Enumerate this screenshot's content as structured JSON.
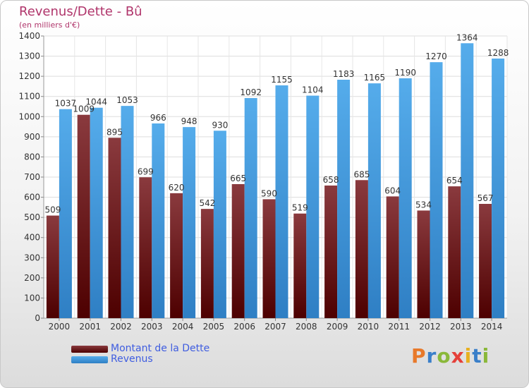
{
  "chart_data": {
    "type": "bar",
    "title": "Revenus/Dette - Bû",
    "subtitle": "(en milliers d'€)",
    "categories": [
      "2000",
      "2001",
      "2002",
      "2003",
      "2004",
      "2005",
      "2006",
      "2007",
      "2008",
      "2009",
      "2010",
      "2011",
      "2012",
      "2013",
      "2014"
    ],
    "series": [
      {
        "name": "Montant de la Dette",
        "values": [
          509,
          1009,
          895,
          699,
          620,
          542,
          665,
          590,
          519,
          658,
          685,
          604,
          534,
          654,
          567
        ],
        "color": "#6e1f27"
      },
      {
        "name": "Revenus",
        "values": [
          1037,
          1044,
          1053,
          966,
          948,
          930,
          1092,
          1155,
          1104,
          1183,
          1165,
          1190,
          1270,
          1364,
          1288
        ],
        "color": "#3f9ddc"
      }
    ],
    "ylim": [
      0,
      1400
    ],
    "yticks": [
      0,
      100,
      200,
      300,
      400,
      500,
      600,
      700,
      800,
      900,
      1000,
      1100,
      1200,
      1300,
      1400
    ],
    "grid": true,
    "legend_position": "bottom-left"
  },
  "logo": {
    "text": "Proxiti",
    "letter_colors": [
      "#e8792a",
      "#3a7fc9",
      "#8ab83a",
      "#e5403a",
      "#e8b020",
      "#3a7fc9",
      "#8ab83a"
    ]
  }
}
